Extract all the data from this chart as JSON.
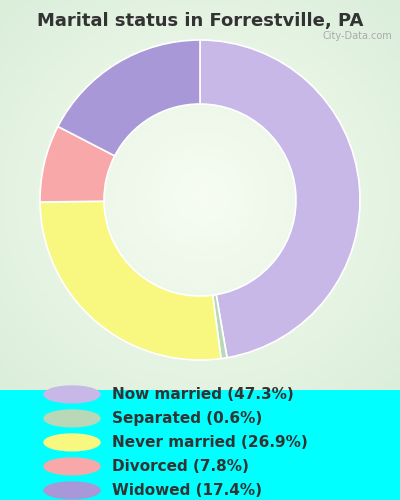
{
  "title": "Marital status in Forrestville, PA",
  "background_color": "#00FFFF",
  "chart_bg_start": "#d8ede0",
  "chart_bg_end": "#f0faf4",
  "slices": [
    {
      "label": "Now married (47.3%)",
      "value": 47.3,
      "color": "#c8b8e8"
    },
    {
      "label": "Separated (0.6%)",
      "value": 0.6,
      "color": "#b8d8b8"
    },
    {
      "label": "Never married (26.9%)",
      "value": 26.9,
      "color": "#f8f880"
    },
    {
      "label": "Divorced (7.8%)",
      "value": 7.8,
      "color": "#f8a8a8"
    },
    {
      "label": "Widowed (17.4%)",
      "value": 17.4,
      "color": "#a898d8"
    }
  ],
  "title_color": "#333333",
  "title_fontsize": 13,
  "legend_fontsize": 11,
  "donut_width": 0.4
}
